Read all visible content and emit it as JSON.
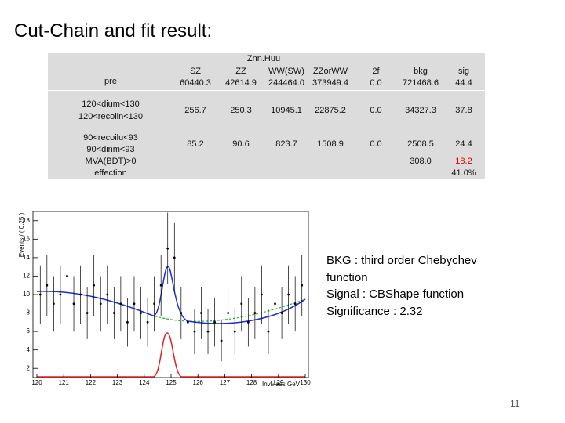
{
  "title": "Cut-Chain and fit result:",
  "table": {
    "group_header": "Znn.Huu",
    "columns": [
      "SZ",
      "ZZ",
      "WW(SW)",
      "ZZorWW",
      "2f",
      "bkg",
      "sig"
    ],
    "rows": [
      {
        "label": [
          "pre"
        ],
        "values": [
          "60440.3",
          "42614.9",
          "244464.0",
          "373949.4",
          "0.0",
          "721468.6",
          "44.4"
        ]
      },
      {
        "label": [
          "120<dium<130",
          "120<recoiln<130"
        ],
        "values": [
          "256.7",
          "250.3",
          "10945.1",
          "22875.2",
          "0.0",
          "34327.3",
          "37.8"
        ]
      },
      {
        "label": [
          "90<recoilu<93",
          "90<dinm<93",
          "MVA(BDT)>0",
          "effection"
        ],
        "values": [
          "85.2",
          "90.6",
          "823.7",
          "1508.9",
          "0.0",
          "2508.5",
          "24.4"
        ]
      }
    ],
    "mva_bkg": "308.0",
    "mva_sig": "18.2",
    "efficiency": "41.0%"
  },
  "plot": {
    "type": "scatter",
    "y_label": "Events / ( 0.25 )",
    "x_label": "InvMass GeV",
    "xlim": [
      120,
      130
    ],
    "ylim": [
      1,
      19
    ],
    "xticks": [
      120,
      121,
      122,
      123,
      124,
      125,
      126,
      127,
      128,
      129,
      130
    ],
    "yticks": [
      2,
      4,
      6,
      8,
      10,
      12,
      14,
      16,
      18
    ],
    "x": [
      120.125,
      120.375,
      120.625,
      120.875,
      121.125,
      121.375,
      121.625,
      121.875,
      122.125,
      122.375,
      122.625,
      122.875,
      123.125,
      123.375,
      123.625,
      123.875,
      124.125,
      124.375,
      124.625,
      124.875,
      125.125,
      125.375,
      125.625,
      125.875,
      126.125,
      126.375,
      126.625,
      126.875,
      127.125,
      127.375,
      127.625,
      127.875,
      128.125,
      128.375,
      128.625,
      128.875,
      129.125,
      129.375,
      129.625,
      129.875
    ],
    "values": [
      10,
      11,
      9,
      10,
      12,
      9,
      10,
      8,
      11,
      9,
      10,
      8,
      9,
      7,
      9,
      8,
      7,
      9,
      11,
      15,
      14,
      8,
      7,
      6,
      8,
      6,
      7,
      5,
      8,
      6,
      9,
      7,
      8,
      10,
      6,
      9,
      8,
      10,
      9,
      11
    ]
  },
  "notes": [
    "BKG : third order Chebychev",
    "function",
    "Signal : CBShape function",
    "Significance :   2.32"
  ],
  "page_number": "11"
}
